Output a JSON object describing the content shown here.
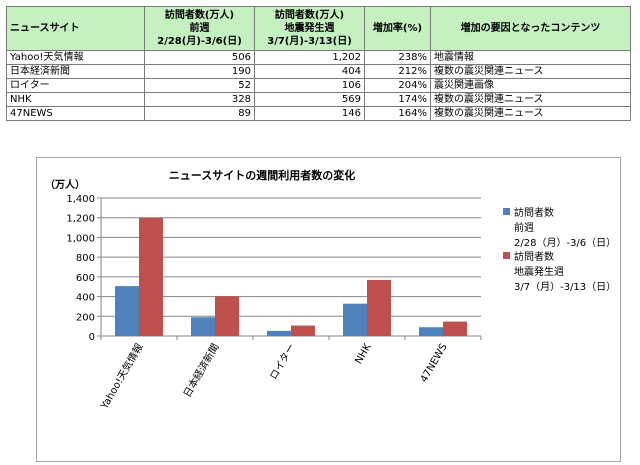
{
  "table": {
    "headers": [
      {
        "lines": [
          "ニュースサイト"
        ]
      },
      {
        "lines": [
          "訪問者数(万人)",
          "前週",
          "2/28(月)-3/6(日)"
        ]
      },
      {
        "lines": [
          "訪問者数(万人)",
          "地震発生週",
          "3/7(月)-3/13(日)"
        ]
      },
      {
        "lines": [
          "増加率(%)"
        ]
      },
      {
        "lines": [
          "増加の要因となったコンテンツ"
        ]
      }
    ],
    "rows": [
      {
        "site": "Yahoo!天気情報",
        "before": "506",
        "after": "1,202",
        "rate": "238%",
        "content": "地震情報"
      },
      {
        "site": "日本経済新聞",
        "before": "190",
        "after": "404",
        "rate": "212%",
        "content": "複数の震災関連ニュース"
      },
      {
        "site": "ロイター",
        "before": "52",
        "after": "106",
        "rate": "204%",
        "content": "震災関連画像"
      },
      {
        "site": "NHK",
        "before": "328",
        "after": "569",
        "rate": "174%",
        "content": "複数の震災関連ニュース"
      },
      {
        "site": "47NEWS",
        "before": "89",
        "after": "146",
        "rate": "164%",
        "content": "複数の震災関連ニュース"
      }
    ]
  },
  "chart_data": {
    "type": "bar",
    "title": "ニュースサイトの週間利用者数の変化",
    "ylabel": "（万人）",
    "categories": [
      "Yahoo!天気情報",
      "日本経済新聞",
      "ロイター",
      "NHK",
      "47NEWS"
    ],
    "ylim": [
      0,
      1400
    ],
    "yticks": [
      "0",
      "200",
      "400",
      "600",
      "800",
      "1,000",
      "1,200",
      "1,400"
    ],
    "grid": true,
    "legend_position": "right",
    "series": [
      {
        "name": "訪問者数",
        "legend_lines": [
          "訪問者数",
          "前週",
          "2/28（月）-3/6（日）"
        ],
        "values": [
          506,
          190,
          52,
          328,
          89
        ],
        "color": "#4f81bd"
      },
      {
        "name": "訪問者数",
        "legend_lines": [
          "訪問者数",
          "地震発生週",
          "3/7（月）-3/13（日）"
        ],
        "values": [
          1202,
          404,
          106,
          569,
          146
        ],
        "color": "#c0504d"
      }
    ]
  }
}
